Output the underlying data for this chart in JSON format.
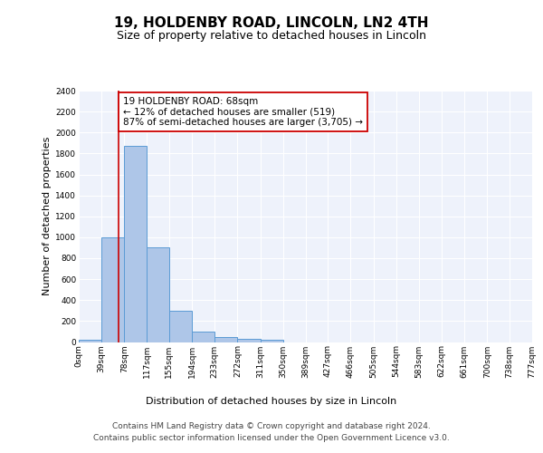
{
  "title_line1": "19, HOLDENBY ROAD, LINCOLN, LN2 4TH",
  "title_line2": "Size of property relative to detached houses in Lincoln",
  "xlabel": "Distribution of detached houses by size in Lincoln",
  "ylabel": "Number of detached properties",
  "bin_edges": [
    0,
    39,
    78,
    117,
    155,
    194,
    233,
    272,
    311,
    350,
    389,
    427,
    466,
    505,
    544,
    583,
    622,
    661,
    700,
    738,
    777
  ],
  "bin_labels": [
    "0sqm",
    "39sqm",
    "78sqm",
    "117sqm",
    "155sqm",
    "194sqm",
    "233sqm",
    "272sqm",
    "311sqm",
    "350sqm",
    "389sqm",
    "427sqm",
    "466sqm",
    "505sqm",
    "544sqm",
    "583sqm",
    "622sqm",
    "661sqm",
    "700sqm",
    "738sqm",
    "777sqm"
  ],
  "bar_heights": [
    20,
    1000,
    1870,
    900,
    300,
    100,
    50,
    30,
    25,
    0,
    0,
    0,
    0,
    0,
    0,
    0,
    0,
    0,
    0,
    0
  ],
  "bar_color": "#aec6e8",
  "bar_edge_color": "#5b9bd5",
  "background_color": "#eef2fb",
  "grid_color": "#ffffff",
  "ylim": [
    0,
    2400
  ],
  "yticks": [
    0,
    200,
    400,
    600,
    800,
    1000,
    1200,
    1400,
    1600,
    1800,
    2000,
    2200,
    2400
  ],
  "property_line_x": 68,
  "property_line_color": "#cc0000",
  "annotation_text": "19 HOLDENBY ROAD: 68sqm\n← 12% of detached houses are smaller (519)\n87% of semi-detached houses are larger (3,705) →",
  "annotation_box_color": "#ffffff",
  "annotation_box_edge": "#cc0000",
  "footer_text": "Contains HM Land Registry data © Crown copyright and database right 2024.\nContains public sector information licensed under the Open Government Licence v3.0.",
  "title_fontsize": 11,
  "subtitle_fontsize": 9,
  "annotation_fontsize": 7.5,
  "footer_fontsize": 6.5,
  "ylabel_fontsize": 8,
  "xlabel_fontsize": 8,
  "tick_fontsize": 6.5
}
